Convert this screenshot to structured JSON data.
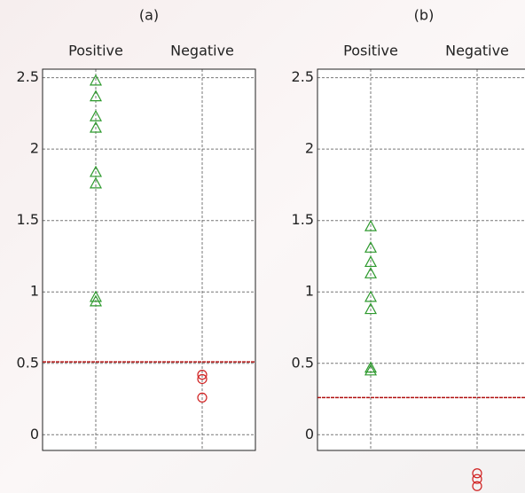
{
  "chart_data": [
    {
      "type": "strip",
      "title": "(a)",
      "categories": [
        "Positive",
        "Negative"
      ],
      "values": [
        [
          2.48,
          2.37,
          2.23,
          2.15,
          1.84,
          1.76,
          0.965,
          0.934
        ],
        [
          0.42,
          0.39,
          0.26
        ]
      ],
      "colors": [
        "#2e9a2e",
        "#d02020"
      ],
      "markers": [
        "triangle",
        "circle"
      ],
      "threshold": 0.51,
      "threshold_color": "#b01010",
      "ylim": [
        -0.11,
        2.56
      ],
      "yticks": [
        0,
        0.5,
        1,
        1.5,
        2,
        2.5
      ],
      "grid": true
    },
    {
      "type": "strip",
      "title": "(b)",
      "categories": [
        "Positive",
        "Negative"
      ],
      "values": [
        [
          1.46,
          1.31,
          1.21,
          1.13,
          0.965,
          0.88,
          0.47,
          0.45
        ],
        [
          -0.27,
          -0.31,
          -0.36
        ]
      ],
      "colors": [
        "#2e9a2e",
        "#d02020"
      ],
      "markers": [
        "triangle",
        "circle"
      ],
      "threshold": 0.26,
      "threshold_color": "#b01010",
      "ylim": [
        -0.11,
        2.56
      ],
      "yticks": [
        0,
        0.5,
        1,
        1.5,
        2,
        2.5
      ],
      "grid": true
    }
  ]
}
